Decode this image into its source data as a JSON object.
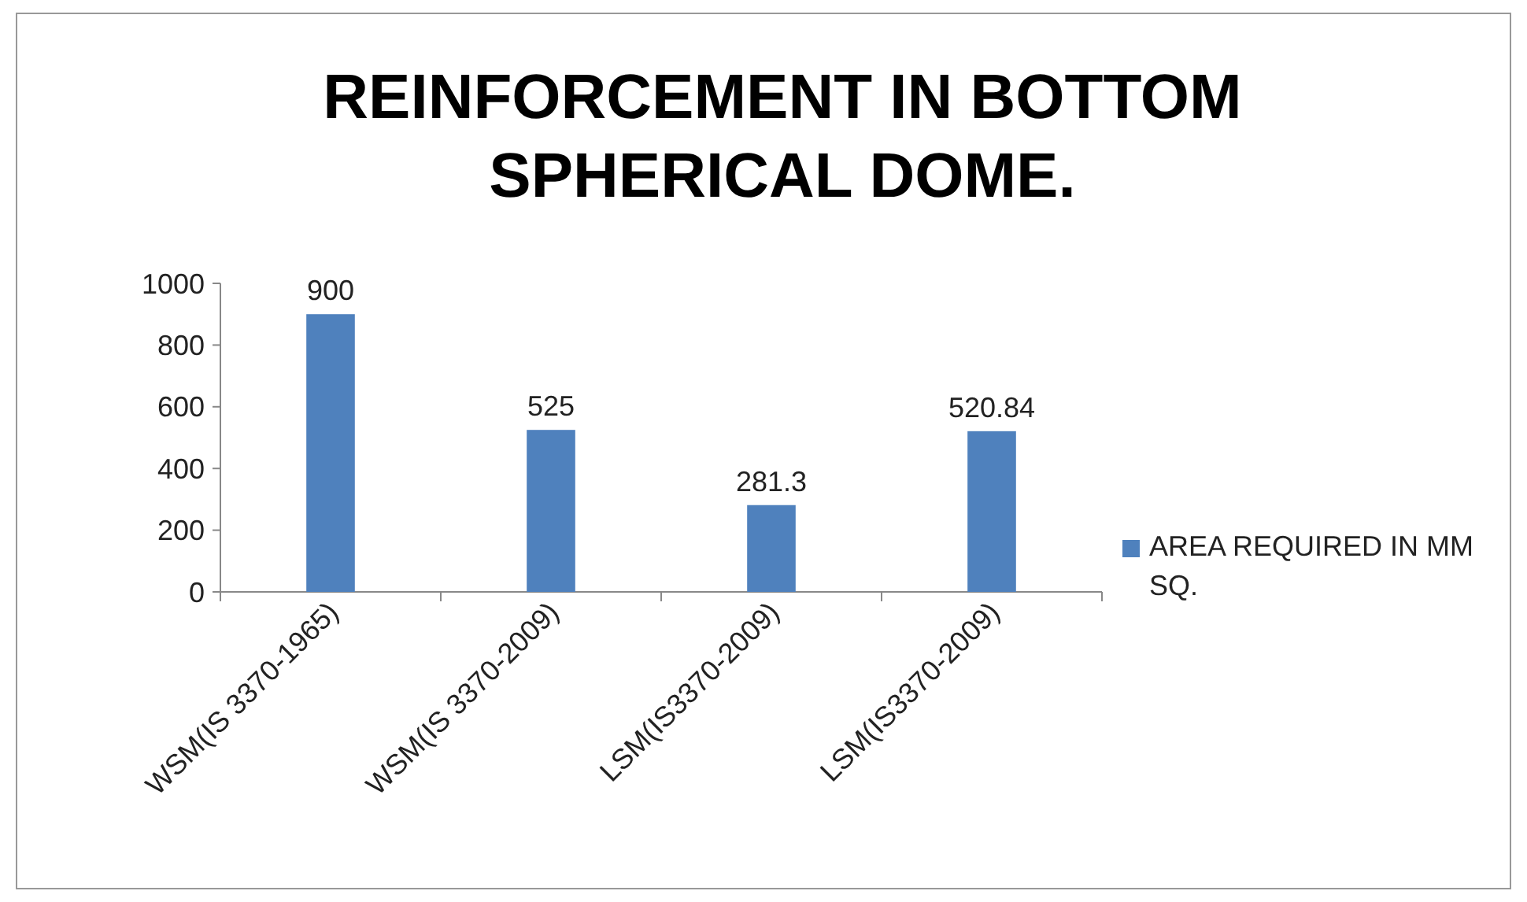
{
  "chart_data": {
    "type": "bar",
    "title": "REINFORCEMENT IN BOTTOM SPHERICAL DOME.",
    "categories": [
      "WSM(IS 3370-1965)",
      "WSM(IS 3370-2009)",
      "LSM(IS3370-2009)",
      "LSM(IS3370-2009)"
    ],
    "series": [
      {
        "name": "AREA REQUIRED IN MM SQ.",
        "color": "#4f81bd",
        "values": [
          900,
          525,
          281.3,
          520.84
        ]
      }
    ],
    "ylim": [
      0,
      1000
    ],
    "yticks": [
      0,
      200,
      400,
      600,
      800,
      1000
    ],
    "data_labels": true,
    "legend": "right",
    "grid": false
  }
}
